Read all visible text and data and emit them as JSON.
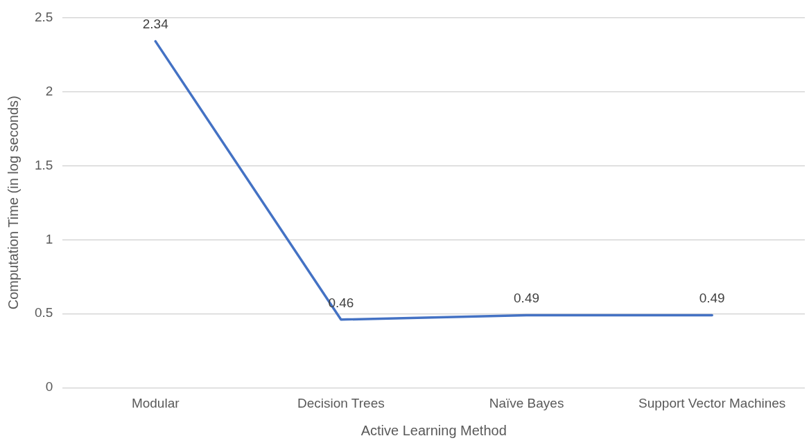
{
  "chart_data": {
    "type": "line",
    "xlabel": "Active Learning Method",
    "ylabel": "Computation Time (in log seconds)",
    "categories": [
      "Modular",
      "Decision Trees",
      "Naïve Bayes",
      "Support Vector Machines"
    ],
    "series": [
      {
        "color": "#4472c4",
        "values": [
          2.34,
          0.46,
          0.49,
          0.49
        ]
      }
    ],
    "ylim": [
      0,
      2.5
    ],
    "yticks": [
      0,
      0.5,
      1,
      1.5,
      2,
      2.5
    ],
    "grid": "y",
    "legend": false,
    "marker": "none",
    "line_style": "solid",
    "data_labels": true
  }
}
